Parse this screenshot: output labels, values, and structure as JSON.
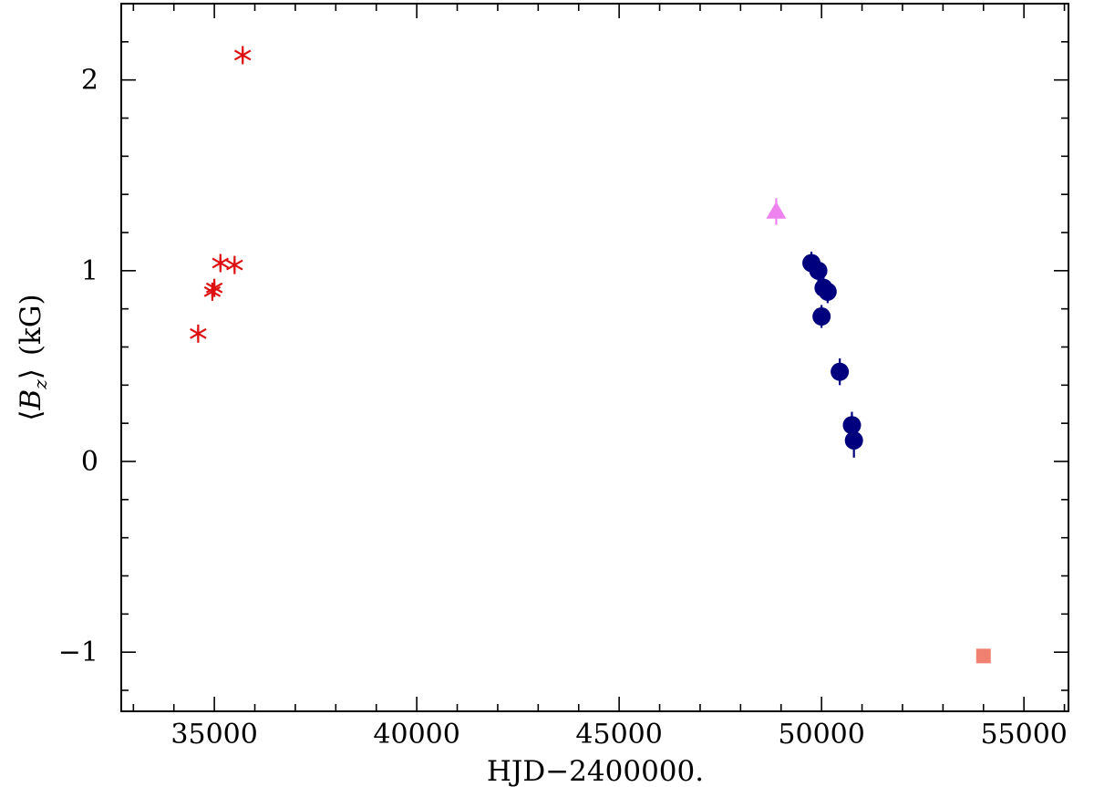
{
  "chart_data": {
    "type": "scatter",
    "title": "",
    "xlabel": "HJD−2400000.",
    "ylabel_parts": {
      "open": "⟨",
      "symbol": "B",
      "subscript": "z",
      "close": "⟩",
      "unit": "(kG)"
    },
    "xlim": [
      32700,
      56100
    ],
    "ylim": [
      -1.31,
      2.4
    ],
    "x_ticks": [
      35000,
      40000,
      45000,
      50000,
      55000
    ],
    "x_tick_labels": [
      "35000",
      "40000",
      "45000",
      "50000",
      "55000"
    ],
    "x_minor_step": 1000,
    "y_ticks": [
      -1,
      0,
      1,
      2
    ],
    "y_tick_labels": [
      "−1",
      "0",
      "1",
      "2"
    ],
    "y_minor_step": 0.2,
    "grid": false,
    "legend": "none",
    "series": [
      {
        "marker": "asterisk",
        "color": "#dd1111",
        "points": [
          {
            "x": 34600,
            "y": 0.67,
            "err": 0.03
          },
          {
            "x": 34950,
            "y": 0.89,
            "err": 0.03
          },
          {
            "x": 35000,
            "y": 0.91,
            "err": 0.03
          },
          {
            "x": 35150,
            "y": 1.04,
            "err": 0.03
          },
          {
            "x": 35500,
            "y": 1.03,
            "err": 0.03
          },
          {
            "x": 35700,
            "y": 2.13,
            "err": 0.03
          }
        ]
      },
      {
        "marker": "triangle",
        "color": "#ee82ee",
        "points": [
          {
            "x": 48880,
            "y": 1.31,
            "err": 0.07
          }
        ]
      },
      {
        "marker": "circle",
        "color": "#00007f",
        "points": [
          {
            "x": 49750,
            "y": 1.04,
            "err": 0.06
          },
          {
            "x": 49920,
            "y": 1.0,
            "err": 0.06
          },
          {
            "x": 50050,
            "y": 0.91,
            "err": 0.06
          },
          {
            "x": 50150,
            "y": 0.89,
            "err": 0.06
          },
          {
            "x": 50000,
            "y": 0.76,
            "err": 0.06
          },
          {
            "x": 50450,
            "y": 0.47,
            "err": 0.07
          },
          {
            "x": 50750,
            "y": 0.19,
            "err": 0.07
          },
          {
            "x": 50800,
            "y": 0.11,
            "err": 0.09
          }
        ]
      },
      {
        "marker": "square",
        "color": "#f08070",
        "points": [
          {
            "x": 54000,
            "y": -1.02,
            "err": 0.03
          }
        ]
      }
    ]
  }
}
